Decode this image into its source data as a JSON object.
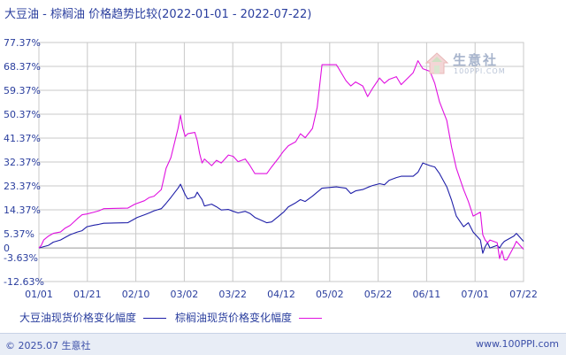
{
  "chart_data": {
    "type": "line",
    "title": "大豆油 - 棕榈油 价格趋势比较(2022-01-01 - 2022-07-22)",
    "yticks": [
      "77.37%",
      "68.37%",
      "59.37%",
      "50.37%",
      "41.37%",
      "32.37%",
      "23.37%",
      "14.37%",
      "5.37%",
      "-3.63%",
      "-12.63%"
    ],
    "ylim": [
      -12.63,
      77.37
    ],
    "zero_label": "0",
    "xticks": [
      "01/01",
      "01/21",
      "02/10",
      "03/02",
      "03/22",
      "04/12",
      "05/02",
      "05/22",
      "06/11",
      "07/01",
      "07/22"
    ],
    "xlim": [
      "2022-01-01",
      "2022-07-22"
    ],
    "grid": true,
    "series": [
      {
        "name": "大豆油现货价格变化幅度",
        "color": "#1f1fa8",
        "points": [
          [
            "2022-01-01",
            0.0
          ],
          [
            "2022-01-03",
            0.5
          ],
          [
            "2022-01-05",
            1.0
          ],
          [
            "2022-01-07",
            2.2
          ],
          [
            "2022-01-10",
            3.0
          ],
          [
            "2022-01-12",
            4.0
          ],
          [
            "2022-01-14",
            5.0
          ],
          [
            "2022-01-17",
            6.0
          ],
          [
            "2022-01-19",
            6.5
          ],
          [
            "2022-01-21",
            8.0
          ],
          [
            "2022-01-24",
            8.6
          ],
          [
            "2022-01-26",
            8.9
          ],
          [
            "2022-01-28",
            9.3
          ],
          [
            "2022-02-07",
            9.5
          ],
          [
            "2022-02-09",
            10.5
          ],
          [
            "2022-02-11",
            11.5
          ],
          [
            "2022-02-14",
            12.5
          ],
          [
            "2022-02-16",
            13.2
          ],
          [
            "2022-02-18",
            14.0
          ],
          [
            "2022-02-21",
            14.8
          ],
          [
            "2022-02-23",
            16.8
          ],
          [
            "2022-02-25",
            19.0
          ],
          [
            "2022-02-28",
            22.5
          ],
          [
            "2022-03-01",
            24.0
          ],
          [
            "2022-03-02",
            22.0
          ],
          [
            "2022-03-03",
            20.0
          ],
          [
            "2022-03-04",
            18.5
          ],
          [
            "2022-03-07",
            19.2
          ],
          [
            "2022-03-08",
            21.0
          ],
          [
            "2022-03-09",
            19.5
          ],
          [
            "2022-03-10",
            18.2
          ],
          [
            "2022-03-11",
            15.8
          ],
          [
            "2022-03-14",
            16.5
          ],
          [
            "2022-03-16",
            15.5
          ],
          [
            "2022-03-18",
            14.3
          ],
          [
            "2022-03-21",
            14.5
          ],
          [
            "2022-03-23",
            13.8
          ],
          [
            "2022-03-25",
            13.2
          ],
          [
            "2022-03-28",
            13.8
          ],
          [
            "2022-03-30",
            13.0
          ],
          [
            "2022-04-01",
            11.5
          ],
          [
            "2022-04-06",
            9.5
          ],
          [
            "2022-04-08",
            9.8
          ],
          [
            "2022-04-11",
            12.0
          ],
          [
            "2022-04-13",
            13.5
          ],
          [
            "2022-04-15",
            15.5
          ],
          [
            "2022-04-18",
            17.0
          ],
          [
            "2022-04-20",
            18.2
          ],
          [
            "2022-04-22",
            17.5
          ],
          [
            "2022-04-25",
            19.5
          ],
          [
            "2022-04-27",
            21.0
          ],
          [
            "2022-04-29",
            22.5
          ],
          [
            "2022-05-05",
            23.0
          ],
          [
            "2022-05-09",
            22.5
          ],
          [
            "2022-05-11",
            20.5
          ],
          [
            "2022-05-13",
            21.5
          ],
          [
            "2022-05-16",
            22.0
          ],
          [
            "2022-05-18",
            22.8
          ],
          [
            "2022-05-20",
            23.5
          ],
          [
            "2022-05-23",
            24.2
          ],
          [
            "2022-05-25",
            23.8
          ],
          [
            "2022-05-27",
            25.5
          ],
          [
            "2022-05-30",
            26.5
          ],
          [
            "2022-06-01",
            27.0
          ],
          [
            "2022-06-06",
            27.0
          ],
          [
            "2022-06-08",
            28.5
          ],
          [
            "2022-06-10",
            32.0
          ],
          [
            "2022-06-13",
            31.0
          ],
          [
            "2022-06-15",
            30.5
          ],
          [
            "2022-06-17",
            28.0
          ],
          [
            "2022-06-20",
            23.0
          ],
          [
            "2022-06-22",
            18.0
          ],
          [
            "2022-06-24",
            12.0
          ],
          [
            "2022-06-27",
            8.0
          ],
          [
            "2022-06-29",
            9.5
          ],
          [
            "2022-07-01",
            6.0
          ],
          [
            "2022-07-04",
            3.0
          ],
          [
            "2022-07-05",
            -2.0
          ],
          [
            "2022-07-06",
            0.5
          ],
          [
            "2022-07-07",
            2.0
          ],
          [
            "2022-07-08",
            0.0
          ],
          [
            "2022-07-11",
            1.0
          ],
          [
            "2022-07-12",
            0.0
          ],
          [
            "2022-07-13",
            1.5
          ],
          [
            "2022-07-14",
            2.5
          ],
          [
            "2022-07-15",
            3.0
          ],
          [
            "2022-07-18",
            4.5
          ],
          [
            "2022-07-19",
            5.5
          ],
          [
            "2022-07-20",
            4.5
          ],
          [
            "2022-07-21",
            3.5
          ],
          [
            "2022-07-22",
            2.5
          ]
        ]
      },
      {
        "name": "棕榈油现货价格变化幅度",
        "color": "#e010e0",
        "points": [
          [
            "2022-01-01",
            0.0
          ],
          [
            "2022-01-02",
            1.0
          ],
          [
            "2022-01-03",
            3.0
          ],
          [
            "2022-01-05",
            4.5
          ],
          [
            "2022-01-07",
            5.5
          ],
          [
            "2022-01-10",
            6.0
          ],
          [
            "2022-01-12",
            7.5
          ],
          [
            "2022-01-14",
            8.5
          ],
          [
            "2022-01-17",
            11.0
          ],
          [
            "2022-01-19",
            12.5
          ],
          [
            "2022-01-21",
            12.8
          ],
          [
            "2022-01-24",
            13.5
          ],
          [
            "2022-01-26",
            14.0
          ],
          [
            "2022-01-28",
            14.8
          ],
          [
            "2022-02-07",
            15.0
          ],
          [
            "2022-02-10",
            16.5
          ],
          [
            "2022-02-14",
            17.8
          ],
          [
            "2022-02-16",
            19.0
          ],
          [
            "2022-02-18",
            19.5
          ],
          [
            "2022-02-21",
            22.0
          ],
          [
            "2022-02-23",
            30.0
          ],
          [
            "2022-02-25",
            34.0
          ],
          [
            "2022-02-28",
            45.0
          ],
          [
            "2022-03-01",
            50.0
          ],
          [
            "2022-03-02",
            45.0
          ],
          [
            "2022-03-03",
            42.0
          ],
          [
            "2022-03-04",
            43.0
          ],
          [
            "2022-03-07",
            43.5
          ],
          [
            "2022-03-08",
            40.5
          ],
          [
            "2022-03-09",
            35.5
          ],
          [
            "2022-03-10",
            32.0
          ],
          [
            "2022-03-11",
            33.5
          ],
          [
            "2022-03-14",
            31.0
          ],
          [
            "2022-03-16",
            33.0
          ],
          [
            "2022-03-18",
            32.0
          ],
          [
            "2022-03-21",
            35.0
          ],
          [
            "2022-03-23",
            34.5
          ],
          [
            "2022-03-25",
            32.5
          ],
          [
            "2022-03-28",
            33.5
          ],
          [
            "2022-03-30",
            31.0
          ],
          [
            "2022-04-01",
            28.0
          ],
          [
            "2022-04-06",
            28.0
          ],
          [
            "2022-04-08",
            30.5
          ],
          [
            "2022-04-11",
            34.0
          ],
          [
            "2022-04-13",
            36.5
          ],
          [
            "2022-04-15",
            38.5
          ],
          [
            "2022-04-18",
            40.0
          ],
          [
            "2022-04-20",
            43.0
          ],
          [
            "2022-04-22",
            41.5
          ],
          [
            "2022-04-25",
            45.0
          ],
          [
            "2022-04-27",
            53.0
          ],
          [
            "2022-04-29",
            69.0
          ],
          [
            "2022-05-05",
            69.0
          ],
          [
            "2022-05-09",
            63.0
          ],
          [
            "2022-05-11",
            61.0
          ],
          [
            "2022-05-13",
            62.5
          ],
          [
            "2022-05-16",
            61.0
          ],
          [
            "2022-05-18",
            57.0
          ],
          [
            "2022-05-20",
            60.0
          ],
          [
            "2022-05-23",
            64.0
          ],
          [
            "2022-05-25",
            62.0
          ],
          [
            "2022-05-27",
            63.5
          ],
          [
            "2022-05-30",
            64.5
          ],
          [
            "2022-06-01",
            61.5
          ],
          [
            "2022-06-06",
            66.0
          ],
          [
            "2022-06-08",
            70.5
          ],
          [
            "2022-06-10",
            67.5
          ],
          [
            "2022-06-13",
            66.5
          ],
          [
            "2022-06-15",
            62.0
          ],
          [
            "2022-06-17",
            55.0
          ],
          [
            "2022-06-20",
            48.0
          ],
          [
            "2022-06-22",
            38.0
          ],
          [
            "2022-06-24",
            30.0
          ],
          [
            "2022-06-27",
            22.0
          ],
          [
            "2022-06-29",
            17.5
          ],
          [
            "2022-07-01",
            12.0
          ],
          [
            "2022-07-04",
            13.5
          ],
          [
            "2022-07-05",
            5.0
          ],
          [
            "2022-07-06",
            3.0
          ],
          [
            "2022-07-07",
            2.0
          ],
          [
            "2022-07-08",
            3.0
          ],
          [
            "2022-07-11",
            2.0
          ],
          [
            "2022-07-12",
            -4.0
          ],
          [
            "2022-07-13",
            -1.0
          ],
          [
            "2022-07-14",
            -4.5
          ],
          [
            "2022-07-15",
            -4.5
          ],
          [
            "2022-07-18",
            0.5
          ],
          [
            "2022-07-19",
            2.5
          ],
          [
            "2022-07-20",
            1.5
          ],
          [
            "2022-07-21",
            0.5
          ],
          [
            "2022-07-22",
            -0.5
          ]
        ]
      }
    ]
  },
  "watermark": {
    "brand": "生意社",
    "url": "100PPI.COM",
    "icon": "house-logo-icon"
  },
  "footer": {
    "copyright": "© 2025.07 生意社",
    "site": "www.100PPI.com"
  },
  "colors": {
    "grid": "#c8c8c8",
    "axis_text": "#2a3e9e",
    "background": "#ffffff"
  }
}
